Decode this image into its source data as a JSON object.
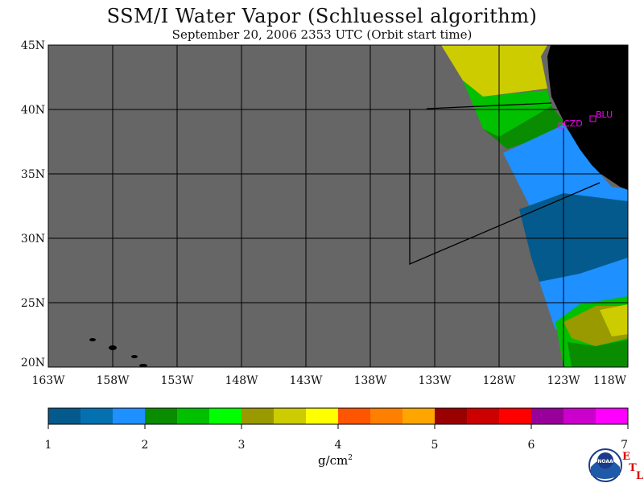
{
  "title": "SSM/I Water Vapor (Schluessel algorithm)",
  "subtitle": "September 20, 2006  2353 UTC  (Orbit start time)",
  "map": {
    "lat_labels": [
      "45N",
      "40N",
      "35N",
      "30N",
      "25N",
      "20N"
    ],
    "lon_labels": [
      "163W",
      "158W",
      "153W",
      "148W",
      "143W",
      "138W",
      "133W",
      "128W",
      "123W",
      "118W"
    ],
    "stations": [
      {
        "label": "CZD"
      },
      {
        "label": "BLU"
      }
    ],
    "colors": {
      "ocean_nodata": "#666666",
      "land": "#000000",
      "station": "#ff00ff"
    }
  },
  "colorbar": {
    "colors": [
      "#045a8d",
      "#0570b0",
      "#1e90ff",
      "#0a8c00",
      "#00c000",
      "#00ff00",
      "#999900",
      "#cccc00",
      "#ffff00",
      "#ff5500",
      "#ff7f00",
      "#ffa500",
      "#990000",
      "#cc0000",
      "#ff0000",
      "#990099",
      "#cc00cc",
      "#ff00ff"
    ],
    "tick_labels": [
      "1",
      "2",
      "3",
      "4",
      "5",
      "6",
      "7"
    ],
    "unit_base": "g/cm",
    "unit_exp": "2"
  },
  "logo": {
    "text": "NOAA",
    "etl_e": "E",
    "etl_t": "T",
    "etl_l": "L"
  }
}
